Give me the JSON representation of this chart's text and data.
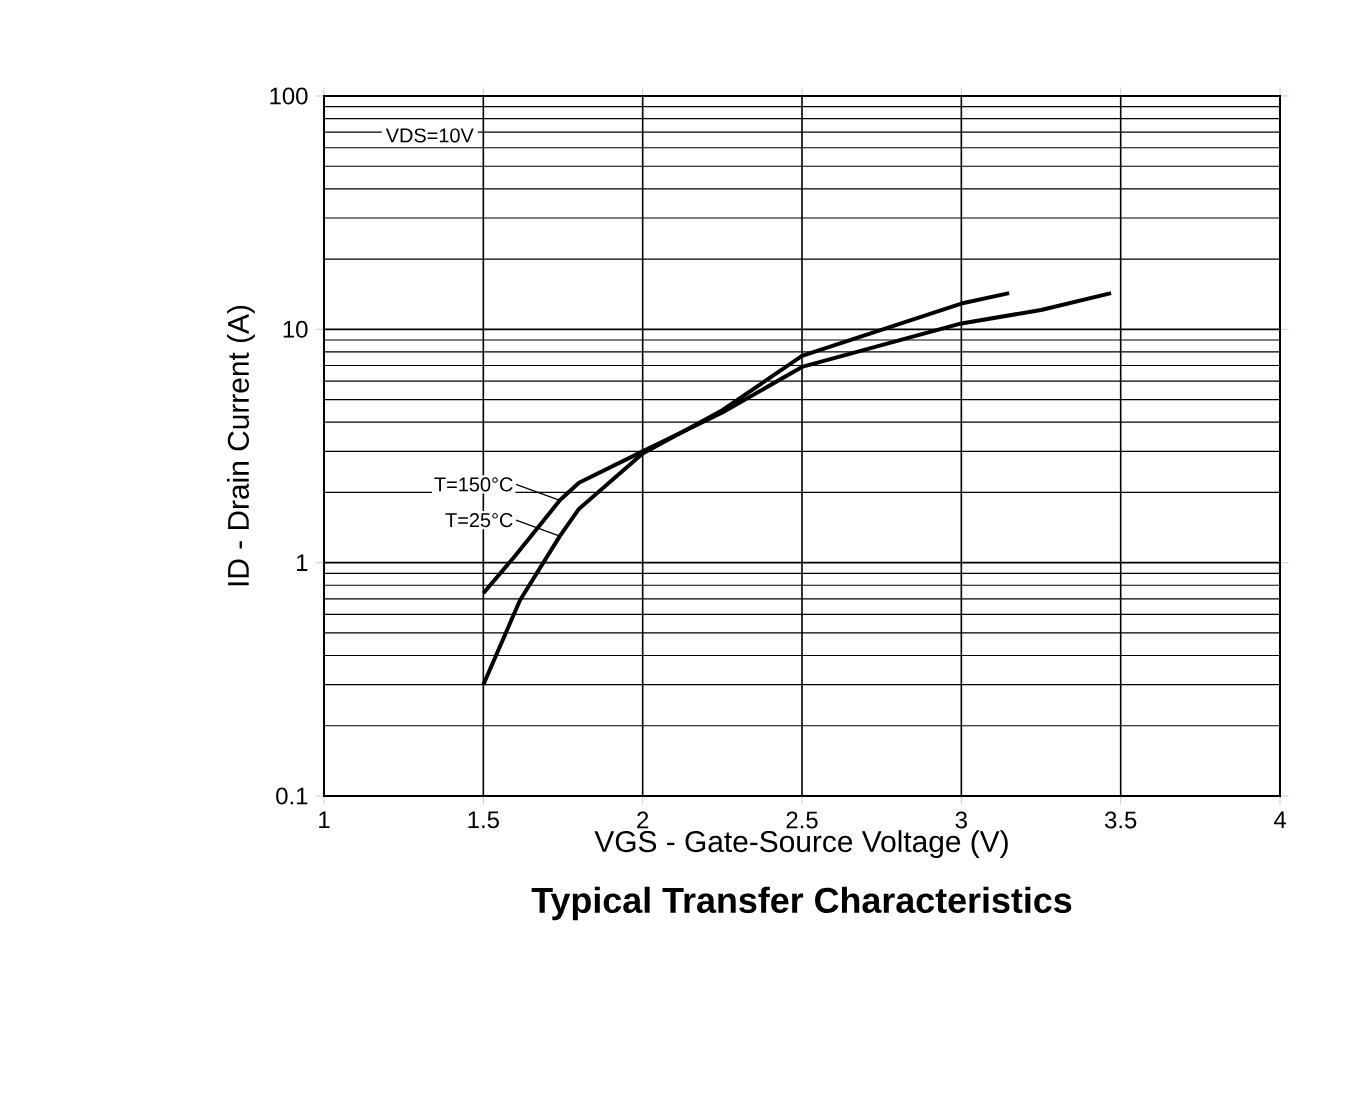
{
  "chart_data": {
    "type": "line",
    "title": "Typical Transfer Characteristics",
    "xlabel": "VGS - Gate-Source Voltage (V)",
    "ylabel": "ID - Drain Current (A)",
    "series": [
      {
        "color": "#000000",
        "x": [
          1.5,
          1.6,
          1.74,
          1.8,
          2.0,
          2.25,
          2.5,
          3.0,
          3.25,
          3.47
        ],
        "values": [
          0.74,
          1.07,
          1.85,
          2.2,
          3.0,
          4.4,
          6.9,
          10.6,
          12.1,
          14.3
        ]
      },
      {
        "color": "#000000",
        "x": [
          1.5,
          1.615,
          1.74,
          1.8,
          2.0,
          2.25,
          2.5,
          3.0,
          3.15
        ],
        "values": [
          0.3,
          0.69,
          1.3,
          1.7,
          2.94,
          4.5,
          7.7,
          12.9,
          14.3
        ]
      }
    ],
    "annotations": [
      "VDS=10V",
      {
        "text": "T=150°C",
        "x": 1.74,
        "y": 1.85
      },
      {
        "text": "T=25°C",
        "x": 1.74,
        "y": 1.3
      }
    ],
    "xlim": [
      1,
      4
    ],
    "xticks": [
      1,
      1.5,
      2,
      2.5,
      3,
      3.5,
      4
    ],
    "ylim": [
      0.1,
      100
    ],
    "yticks": [
      0.1,
      1,
      10,
      100
    ],
    "log": "y",
    "grid": true,
    "marker": "none",
    "line_style": "solid"
  }
}
